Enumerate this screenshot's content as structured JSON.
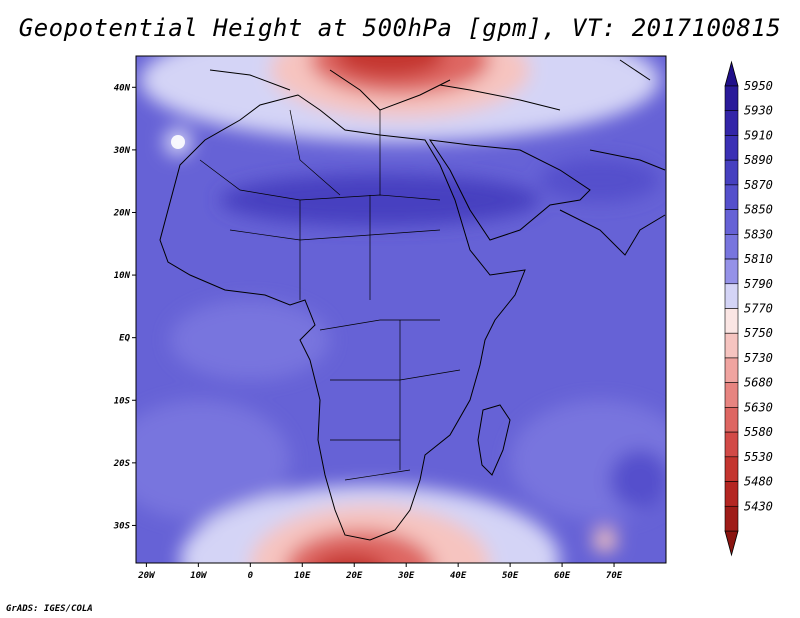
{
  "title": "Geopotential Height at 500hPa [gpm], VT: 2017100815",
  "credit": "GrADS: IGES/COLA",
  "map": {
    "lon_range": [
      -22,
      80
    ],
    "lat_range": [
      -36,
      45
    ],
    "lat_ticks": [
      {
        "value": 40,
        "label": "40N"
      },
      {
        "value": 30,
        "label": "30N"
      },
      {
        "value": 20,
        "label": "20N"
      },
      {
        "value": 10,
        "label": "10N"
      },
      {
        "value": 0,
        "label": "EQ"
      },
      {
        "value": -10,
        "label": "10S"
      },
      {
        "value": -20,
        "label": "20S"
      },
      {
        "value": -30,
        "label": "30S"
      }
    ],
    "lon_ticks": [
      {
        "value": -20,
        "label": "20W"
      },
      {
        "value": -10,
        "label": "10W"
      },
      {
        "value": 0,
        "label": "0"
      },
      {
        "value": 10,
        "label": "10E"
      },
      {
        "value": 20,
        "label": "20E"
      },
      {
        "value": 30,
        "label": "30E"
      },
      {
        "value": 40,
        "label": "40E"
      },
      {
        "value": 50,
        "label": "50E"
      },
      {
        "value": 60,
        "label": "60E"
      },
      {
        "value": 70,
        "label": "70E"
      }
    ]
  },
  "colorbar": {
    "levels": [
      {
        "label": "5950",
        "color": "#2a1a9a"
      },
      {
        "label": "5930",
        "color": "#3325a8"
      },
      {
        "label": "5910",
        "color": "#3b30b5"
      },
      {
        "label": "5890",
        "color": "#4640c0"
      },
      {
        "label": "5870",
        "color": "#5550cc"
      },
      {
        "label": "5850",
        "color": "#6662d6"
      },
      {
        "label": "5830",
        "color": "#7875de"
      },
      {
        "label": "5810",
        "color": "#9592e8"
      },
      {
        "label": "5790",
        "color": "#d4d4f6"
      },
      {
        "label": "5770",
        "color": "#fbe6e4"
      },
      {
        "label": "5750",
        "color": "#f6c4c0"
      },
      {
        "label": "5730",
        "color": "#f0a4a0"
      },
      {
        "label": "5680",
        "color": "#e78480"
      },
      {
        "label": "5630",
        "color": "#de6662"
      },
      {
        "label": "5580",
        "color": "#d24a47"
      },
      {
        "label": "5530",
        "color": "#c4352f"
      },
      {
        "label": "5480",
        "color": "#b42622"
      },
      {
        "label": "5430",
        "color": "#9f1c18"
      }
    ],
    "top_arrow_color": "#200f8a",
    "bottom_arrow_color": "#8a1410"
  }
}
